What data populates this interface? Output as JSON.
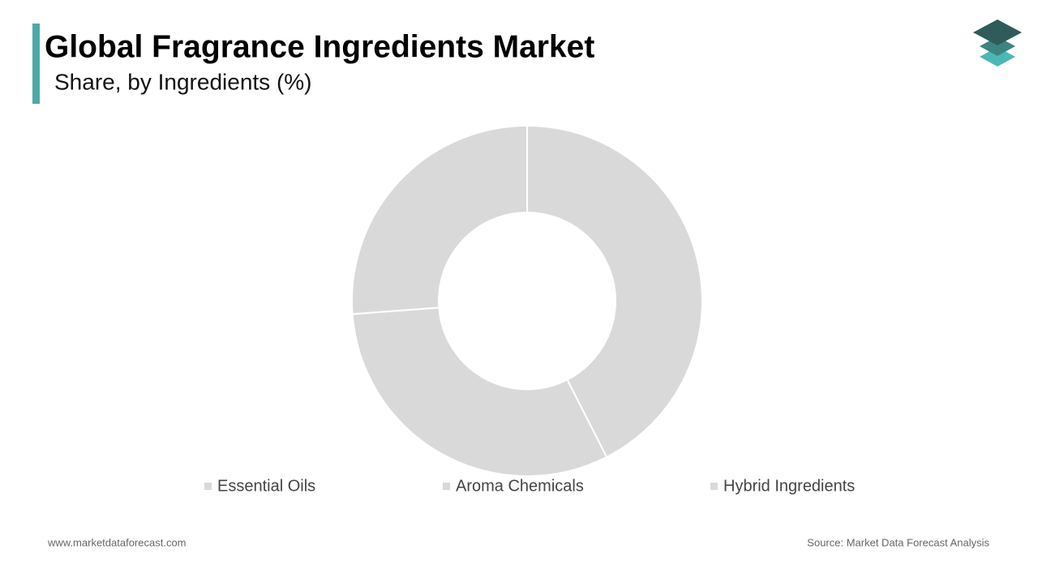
{
  "chart_data": {
    "type": "pie",
    "title": "Global Fragrance Ingredients Market",
    "subtitle": "Share, by Ingredients (%)",
    "categories": [
      "Essential Oils",
      "Aroma Chemicals",
      "Hybrid Ingredients"
    ],
    "values": [
      42.5,
      31.3,
      26.2
    ],
    "color": "#d9d9d9",
    "donut": true
  },
  "footer": {
    "website": "www.marketdataforecast.com",
    "source": "Source: Market Data Forecast Analysis"
  }
}
